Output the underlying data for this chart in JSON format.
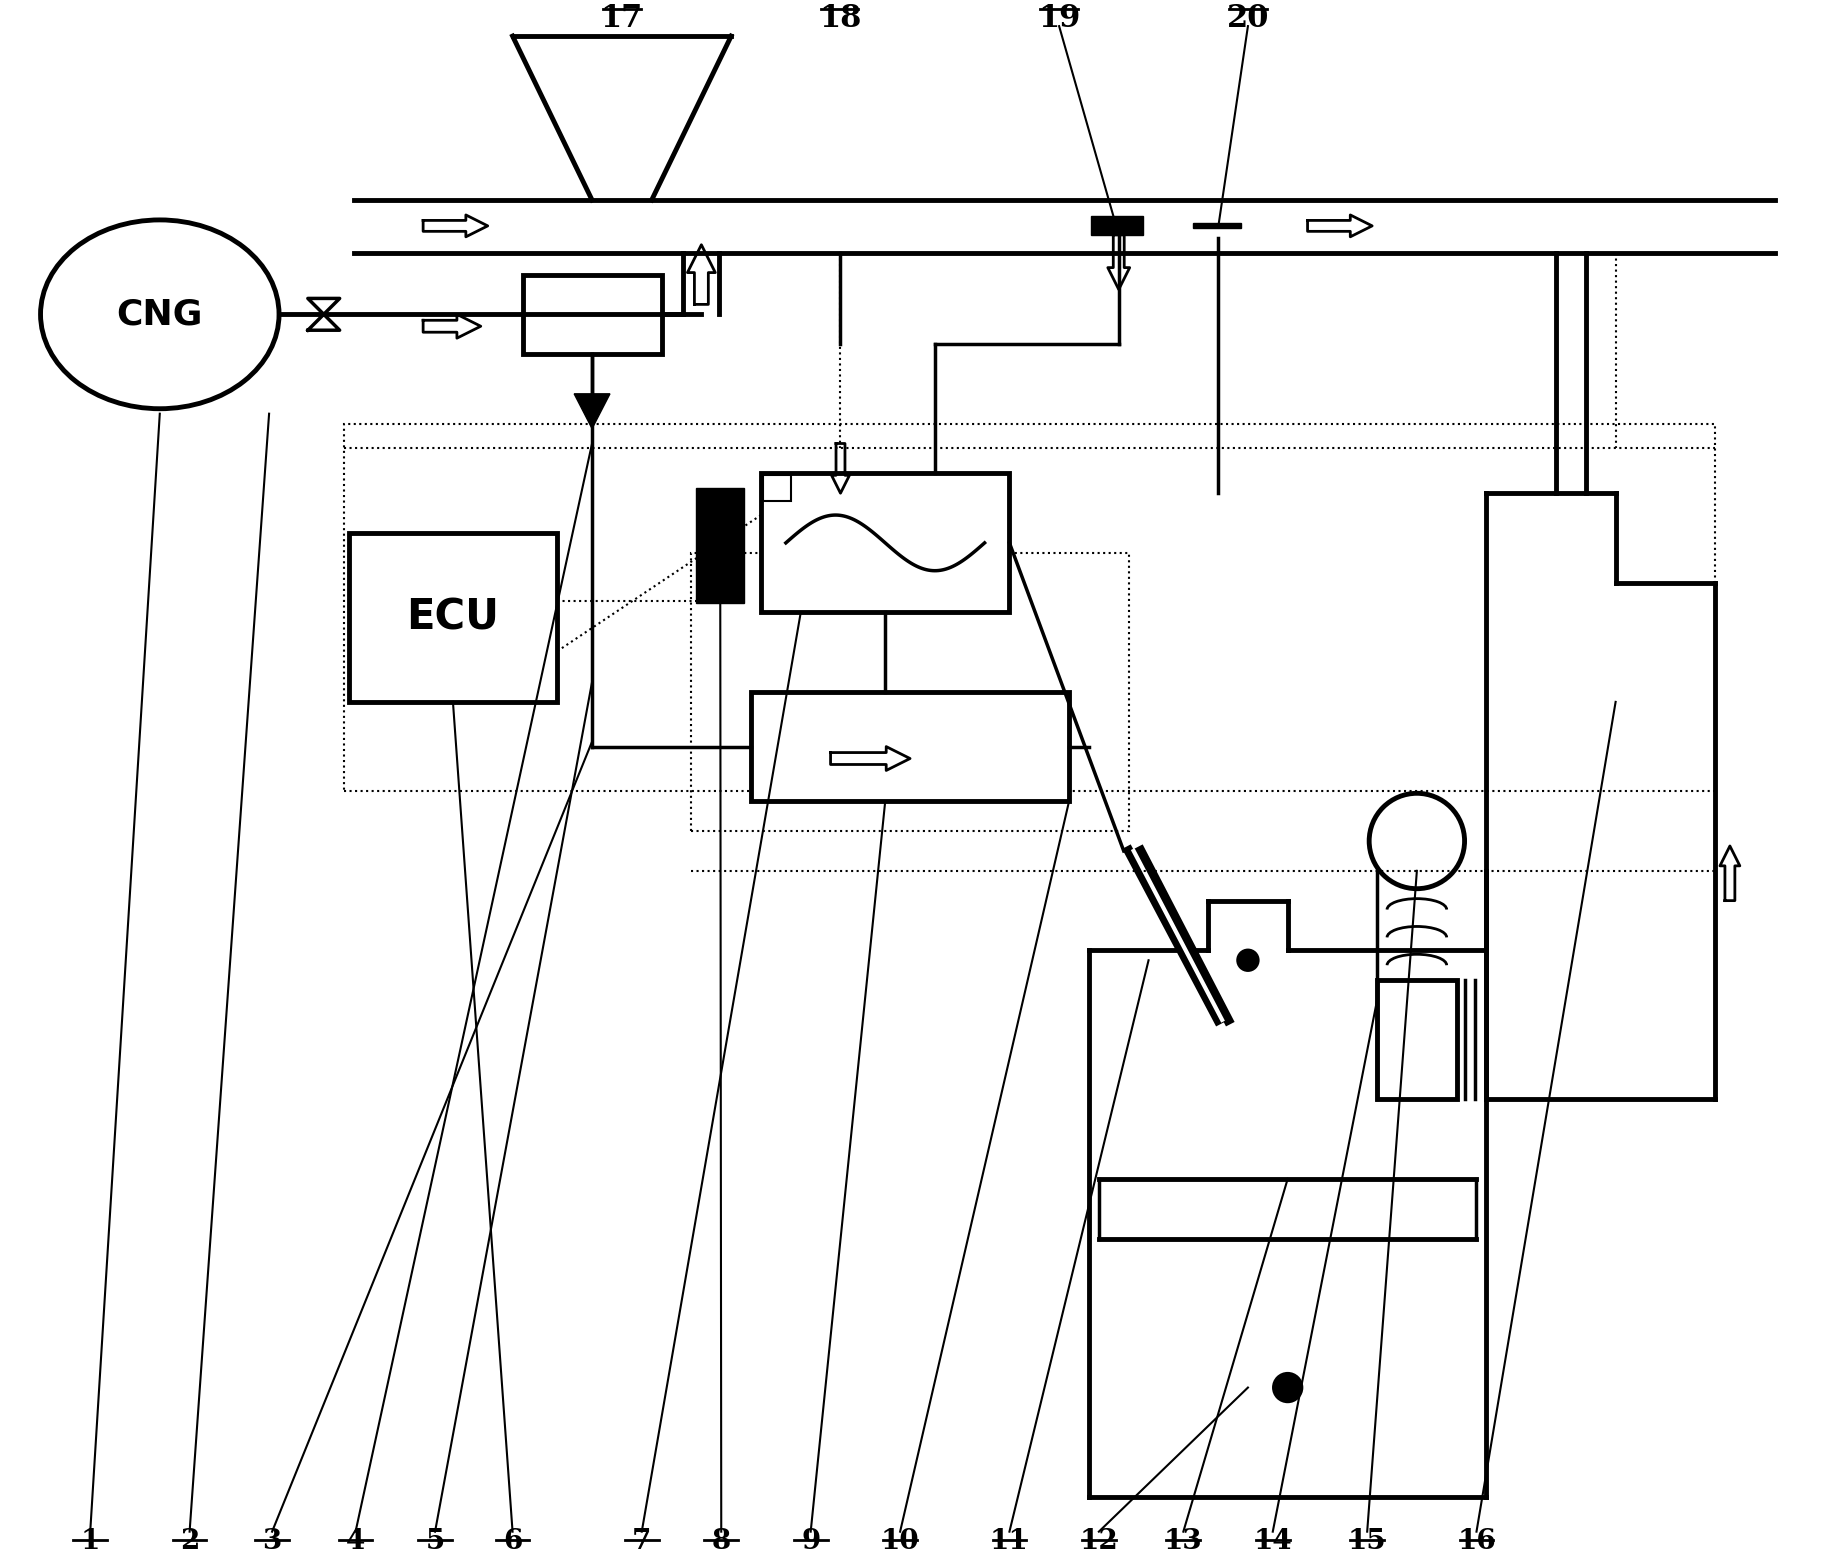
{
  "title": "",
  "bg_color": "#ffffff",
  "line_color": "#000000",
  "labels_top": [
    "17",
    "18",
    "19",
    "20"
  ],
  "labels_bottom": [
    "1",
    "2",
    "3",
    "4",
    "5",
    "6",
    "7",
    "8",
    "9",
    "10",
    "11",
    "12",
    "13",
    "14",
    "15",
    "16"
  ],
  "cng_label": "CNG",
  "ecu_label": "ECU",
  "fig_width": 18.39,
  "fig_height": 15.58
}
